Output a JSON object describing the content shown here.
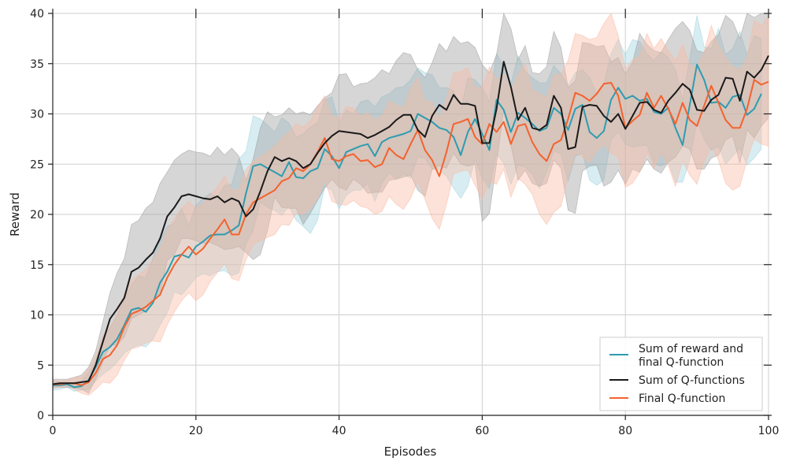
{
  "chart_data": {
    "type": "line",
    "xlabel": "Episodes",
    "ylabel": "Reward",
    "xlim": [
      0,
      100
    ],
    "ylim": [
      0,
      40
    ],
    "xticks": [
      0,
      20,
      40,
      60,
      80,
      100
    ],
    "yticks": [
      0,
      5,
      10,
      15,
      20,
      25,
      30,
      35,
      40
    ],
    "grid": true,
    "legend_position": "lower-right",
    "x_step": 1,
    "series": [
      {
        "name": "Sum of reward and final Q-function",
        "color": "#2e9cb0",
        "values": [
          3.0,
          3.0,
          3.1,
          2.8,
          2.9,
          3.5,
          4.8,
          6.3,
          6.8,
          7.6,
          9.0,
          10.5,
          10.7,
          10.3,
          11.2,
          13.2,
          14.3,
          15.8,
          16.0,
          15.7,
          16.8,
          17.3,
          17.9,
          18.0,
          18.0,
          18.4,
          18.9,
          22.1,
          24.8,
          25.0,
          24.6,
          24.2,
          23.8,
          25.2,
          23.7,
          23.6,
          24.3,
          24.6,
          26.5,
          25.8,
          24.6,
          26.2,
          26.5,
          26.8,
          27.0,
          25.8,
          27.2,
          27.6,
          27.8,
          28.0,
          28.3,
          30.0,
          29.6,
          29.2,
          28.6,
          28.4,
          27.7,
          25.9,
          28.2,
          29.5,
          28.0,
          26.4,
          31.4,
          30.4,
          28.2,
          30.1,
          29.6,
          29.0,
          28.3,
          28.6,
          30.6,
          30.0,
          28.4,
          30.5,
          30.9,
          28.2,
          27.6,
          28.3,
          31.4,
          32.6,
          31.5,
          31.8,
          31.3,
          31.5,
          30.2,
          30.0,
          30.6,
          28.6,
          26.9,
          30.9,
          34.9,
          33.4,
          31.1,
          31.2,
          30.6,
          31.7,
          31.9,
          29.9,
          30.5,
          32.0
        ]
      },
      {
        "name": "Sum of Q-functions",
        "color": "#1a1a1a",
        "values": [
          3.1,
          3.2,
          3.2,
          3.2,
          3.3,
          3.4,
          5.0,
          7.3,
          9.6,
          10.6,
          11.7,
          14.3,
          14.7,
          15.5,
          16.2,
          17.6,
          19.8,
          20.7,
          21.8,
          22.0,
          21.8,
          21.6,
          21.5,
          21.8,
          21.2,
          21.6,
          21.3,
          19.8,
          20.5,
          22.3,
          24.3,
          25.7,
          25.3,
          25.6,
          25.3,
          24.6,
          25.0,
          26.1,
          27.1,
          27.8,
          28.3,
          28.2,
          28.1,
          28.0,
          27.6,
          27.9,
          28.3,
          28.7,
          29.4,
          29.9,
          29.9,
          28.4,
          27.7,
          29.8,
          30.9,
          30.4,
          31.9,
          31.0,
          31.0,
          30.8,
          27.1,
          27.1,
          30.5,
          35.2,
          32.7,
          29.4,
          30.6,
          28.6,
          28.4,
          28.9,
          31.8,
          30.6,
          26.5,
          26.7,
          30.7,
          30.9,
          30.8,
          29.8,
          29.2,
          30.0,
          28.5,
          29.8,
          31.1,
          31.2,
          30.4,
          30.1,
          31.3,
          32.1,
          33.0,
          32.4,
          30.4,
          30.3,
          31.4,
          31.9,
          33.6,
          33.5,
          31.3,
          34.2,
          33.6,
          34.4,
          35.8
        ]
      },
      {
        "name": "Final Q-function",
        "color": "#f4622d",
        "values": [
          3.1,
          3.1,
          3.2,
          3.2,
          3.0,
          3.3,
          4.2,
          5.6,
          6.0,
          7.0,
          8.8,
          10.1,
          10.4,
          10.8,
          11.4,
          12.0,
          13.7,
          15.0,
          16.0,
          16.8,
          16.0,
          16.6,
          17.6,
          18.5,
          19.5,
          18.0,
          18.0,
          20.0,
          21.2,
          21.6,
          22.0,
          22.4,
          23.3,
          23.6,
          24.6,
          24.3,
          25.0,
          26.2,
          27.6,
          25.5,
          25.3,
          25.8,
          26.0,
          25.3,
          25.4,
          24.7,
          25.0,
          26.6,
          25.9,
          25.5,
          27.0,
          28.4,
          26.4,
          25.4,
          23.8,
          26.2,
          29.0,
          29.2,
          29.5,
          27.7,
          27.0,
          29.0,
          28.2,
          29.2,
          27.0,
          28.8,
          29.0,
          27.2,
          26.0,
          25.3,
          27.0,
          27.4,
          29.5,
          32.1,
          31.8,
          31.3,
          32.0,
          33.0,
          33.1,
          31.8,
          28.6,
          29.3,
          29.9,
          32.1,
          30.6,
          31.8,
          30.5,
          29.0,
          31.1,
          29.4,
          28.8,
          30.8,
          32.8,
          31.1,
          29.4,
          28.6,
          28.6,
          30.5,
          33.4,
          32.9,
          33.2
        ]
      }
    ],
    "bands": [
      {
        "series": "Sum of reward and final Q-function",
        "color": "#9fd3e0",
        "upper": [
          3.4,
          3.3,
          3.3,
          3.1,
          3.4,
          4.3,
          5.4,
          7.8,
          8.7,
          10.0,
          11.5,
          13.0,
          13.9,
          13.7,
          15.7,
          17.4,
          18.8,
          19.2,
          20.6,
          18.9,
          20.9,
          21.6,
          22.1,
          21.7,
          22.9,
          23.0,
          25.5,
          26.3,
          29.8,
          29.5,
          28.9,
          28.2,
          29.6,
          29.1,
          27.7,
          28.0,
          28.7,
          29.1,
          31.4,
          31.7,
          29.1,
          30.4,
          30.0,
          31.2,
          31.4,
          30.7,
          31.7,
          32.0,
          32.6,
          32.7,
          33.4,
          34.6,
          34.1,
          33.9,
          32.6,
          32.6,
          32.3,
          30.4,
          33.6,
          33.4,
          32.6,
          31.2,
          36.0,
          34.7,
          33.0,
          35.8,
          34.2,
          33.6,
          33.1,
          33.1,
          34.8,
          34.0,
          32.8,
          34.1,
          34.4,
          33.6,
          32.0,
          33.0,
          36.0,
          37.4,
          35.9,
          37.4,
          37.2,
          36.0,
          35.3,
          36.2,
          35.6,
          34.4,
          31.4,
          35.6,
          39.8,
          36.7,
          36.5,
          38.5,
          35.9,
          36.5,
          38.2,
          35.9,
          37.8,
          37.5
        ],
        "lower": [
          2.5,
          2.6,
          2.8,
          2.4,
          2.5,
          2.6,
          3.4,
          4.1,
          4.6,
          5.3,
          6.2,
          6.7,
          7.0,
          6.8,
          7.6,
          9.0,
          10.2,
          12.3,
          12.0,
          12.8,
          13.7,
          14.1,
          13.9,
          14.3,
          14.4,
          13.9,
          14.2,
          17.1,
          18.4,
          21.2,
          20.7,
          20.4,
          19.9,
          20.8,
          19.4,
          18.8,
          18.1,
          19.4,
          22.8,
          22.4,
          20.5,
          21.9,
          22.4,
          22.4,
          23.1,
          21.3,
          23.1,
          24.1,
          23.5,
          24.0,
          23.6,
          25.7,
          25.6,
          24.5,
          24.4,
          23.8,
          22.6,
          21.6,
          22.8,
          25.5,
          23.6,
          22.6,
          26.0,
          25.1,
          23.0,
          24.9,
          24.7,
          24.0,
          22.6,
          24.2,
          26.3,
          26.0,
          23.3,
          25.8,
          26.1,
          23.4,
          22.9,
          23.4,
          27.4,
          28.2,
          27.0,
          26.7,
          26.8,
          26.9,
          25.0,
          24.8,
          25.2,
          23.2,
          23.2,
          25.4,
          29.3,
          27.5,
          26.4,
          26.8,
          25.0,
          25.8,
          26.6,
          24.9,
          25.6,
          26.5
        ]
      },
      {
        "series": "Sum of Q-functions",
        "color": "#9e9e9e",
        "upper": [
          3.6,
          3.6,
          3.6,
          3.8,
          4.0,
          4.8,
          6.4,
          9.3,
          12.2,
          14.2,
          15.6,
          19.0,
          19.4,
          20.6,
          21.2,
          23.1,
          24.2,
          25.4,
          26.0,
          26.4,
          26.2,
          26.1,
          25.8,
          26.7,
          25.9,
          26.6,
          25.8,
          23.4,
          25.5,
          28.6,
          30.2,
          29.7,
          29.9,
          30.6,
          30.0,
          30.2,
          29.9,
          30.8,
          31.6,
          32.1,
          33.9,
          34.0,
          32.7,
          33.0,
          33.1,
          33.6,
          34.4,
          34.0,
          35.3,
          36.1,
          35.9,
          34.4,
          33.6,
          35.1,
          37.0,
          36.2,
          37.7,
          37.0,
          37.2,
          36.6,
          34.9,
          34.1,
          35.9,
          40.0,
          38.5,
          35.4,
          36.8,
          34.1,
          34.0,
          34.7,
          38.2,
          36.6,
          32.6,
          33.3,
          37.1,
          37.0,
          36.7,
          36.8,
          35.2,
          35.6,
          34.0,
          35.1,
          38.0,
          36.9,
          36.3,
          36.1,
          37.4,
          38.5,
          39.2,
          38.3,
          36.3,
          36.1,
          37.2,
          37.9,
          39.8,
          39.2,
          37.5,
          40.0,
          39.6,
          40.0,
          40.0
        ],
        "lower": [
          2.8,
          2.8,
          2.8,
          2.7,
          2.6,
          2.2,
          3.6,
          5.3,
          7.0,
          7.0,
          7.8,
          9.6,
          10.0,
          10.4,
          11.2,
          12.1,
          15.4,
          16.0,
          17.6,
          17.6,
          17.4,
          17.1,
          17.2,
          16.9,
          16.5,
          16.6,
          16.8,
          16.2,
          15.5,
          16.0,
          18.4,
          21.7,
          20.7,
          20.6,
          20.6,
          19.0,
          20.1,
          21.4,
          22.6,
          23.5,
          22.7,
          22.4,
          23.5,
          23.0,
          22.1,
          22.2,
          22.2,
          23.4,
          23.5,
          23.7,
          23.9,
          22.4,
          21.8,
          24.5,
          24.8,
          24.6,
          26.1,
          25.0,
          24.8,
          25.0,
          19.3,
          20.1,
          25.1,
          30.4,
          26.9,
          23.4,
          24.4,
          23.1,
          22.8,
          23.1,
          25.4,
          24.6,
          20.4,
          20.1,
          24.3,
          24.8,
          24.9,
          22.8,
          23.2,
          24.4,
          23.0,
          24.5,
          24.2,
          25.5,
          24.5,
          24.1,
          25.2,
          25.7,
          26.8,
          26.5,
          24.5,
          24.5,
          25.6,
          25.9,
          27.4,
          27.8,
          25.1,
          28.4,
          27.6,
          28.8,
          29.6
        ]
      },
      {
        "series": "Final Q-function",
        "color": "#f9b9a3",
        "upper": [
          3.5,
          3.4,
          3.5,
          3.8,
          3.8,
          4.6,
          5.9,
          7.9,
          8.8,
          10.1,
          12.1,
          13.5,
          14.0,
          14.5,
          15.5,
          16.6,
          18.4,
          19.6,
          20.6,
          21.3,
          20.6,
          21.1,
          21.9,
          22.7,
          23.8,
          22.4,
          22.5,
          24.5,
          25.3,
          25.7,
          26.2,
          26.8,
          27.6,
          28.2,
          29.0,
          28.7,
          29.3,
          30.7,
          31.8,
          29.8,
          29.6,
          30.7,
          30.6,
          29.8,
          30.1,
          29.4,
          29.8,
          31.3,
          30.9,
          30.6,
          32.5,
          33.6,
          31.3,
          31.2,
          29.5,
          31.5,
          34.1,
          34.2,
          34.6,
          32.6,
          32.6,
          34.7,
          33.4,
          34.0,
          32.3,
          33.9,
          35.0,
          32.4,
          32.0,
          31.6,
          33.9,
          33.9,
          35.3,
          38.0,
          37.8,
          37.4,
          37.6,
          39.0,
          40.0,
          37.8,
          34.5,
          35.4,
          35.7,
          38.0,
          36.5,
          37.5,
          36.3,
          35.3,
          36.9,
          34.9,
          34.6,
          36.2,
          38.8,
          36.8,
          35.6,
          34.7,
          34.4,
          35.6,
          39.3,
          38.8,
          39.7
        ],
        "lower": [
          2.7,
          2.8,
          2.9,
          2.6,
          2.2,
          2.0,
          2.6,
          3.3,
          3.2,
          4.0,
          5.5,
          6.6,
          6.8,
          7.2,
          7.4,
          7.3,
          9.0,
          10.3,
          11.4,
          12.2,
          11.4,
          12.0,
          13.3,
          14.2,
          15.1,
          13.6,
          13.4,
          15.5,
          17.0,
          17.4,
          17.7,
          18.0,
          19.0,
          18.9,
          20.1,
          20.0,
          20.6,
          21.6,
          23.4,
          21.3,
          21.0,
          20.9,
          21.4,
          20.8,
          20.6,
          20.0,
          20.3,
          21.8,
          21.0,
          20.5,
          21.6,
          23.3,
          21.5,
          19.6,
          18.5,
          21.0,
          24.0,
          24.3,
          24.4,
          22.9,
          21.5,
          23.3,
          23.0,
          24.5,
          21.7,
          23.6,
          23.0,
          22.0,
          20.0,
          19.0,
          20.2,
          20.8,
          23.7,
          26.1,
          25.7,
          25.2,
          26.3,
          27.0,
          26.1,
          25.7,
          22.7,
          23.1,
          24.2,
          26.2,
          24.6,
          26.2,
          24.8,
          22.8,
          25.3,
          23.9,
          23.0,
          25.3,
          26.8,
          25.4,
          23.1,
          22.4,
          22.8,
          25.4,
          27.5,
          27.0,
          26.8
        ]
      }
    ]
  }
}
